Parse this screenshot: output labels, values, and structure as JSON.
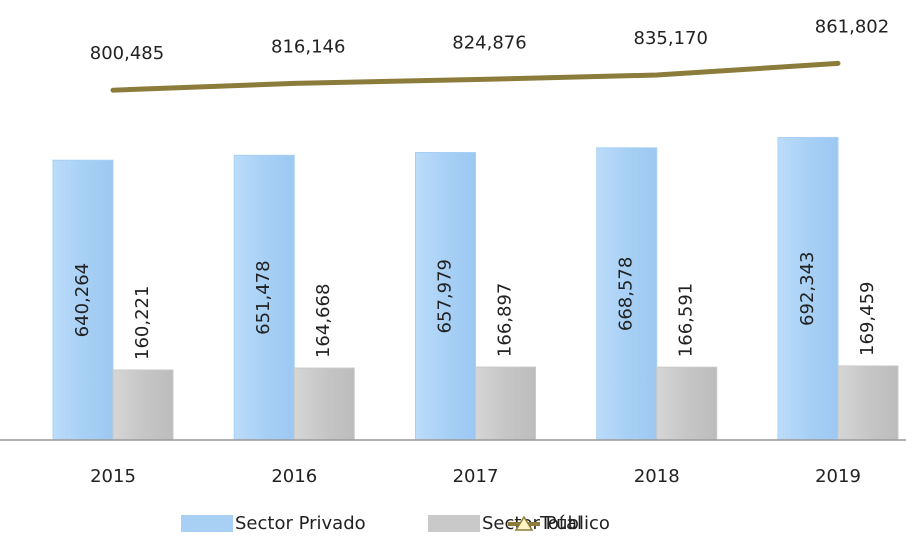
{
  "chart_data": {
    "type": "bar",
    "categories": [
      "2015",
      "2016",
      "2017",
      "2018",
      "2019"
    ],
    "ylim": [
      0,
      1000000
    ],
    "series": [
      {
        "name": "Sector Privado",
        "type": "bar",
        "color": "#a8d0f5",
        "values": [
          640264,
          651478,
          657979,
          668578,
          692343
        ],
        "value_labels": [
          "640,264",
          "651,478",
          "657,979",
          "668,578",
          "692,343"
        ]
      },
      {
        "name": "Sector Público",
        "type": "bar",
        "color": "#c9c9c9",
        "values": [
          160221,
          164668,
          166897,
          166591,
          169459
        ],
        "value_labels": [
          "160,221",
          "164,668",
          "166,897",
          "166,591",
          "169,459"
        ]
      },
      {
        "name": "Total",
        "type": "line",
        "color": "#8b7c3b",
        "values": [
          800485,
          816146,
          824876,
          835170,
          861802
        ],
        "value_labels": [
          "800,485",
          "816,146",
          "824,876",
          "835,170",
          "861,802"
        ]
      }
    ]
  }
}
